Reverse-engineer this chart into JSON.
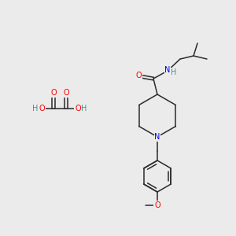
{
  "bg_color": "#ebebeb",
  "bond_color": "#2a2a2a",
  "atom_colors": {
    "O": "#ff0000",
    "N": "#0000ee",
    "H": "#4a9090",
    "C": "#2a2a2a"
  },
  "font_size_atom": 7.0
}
